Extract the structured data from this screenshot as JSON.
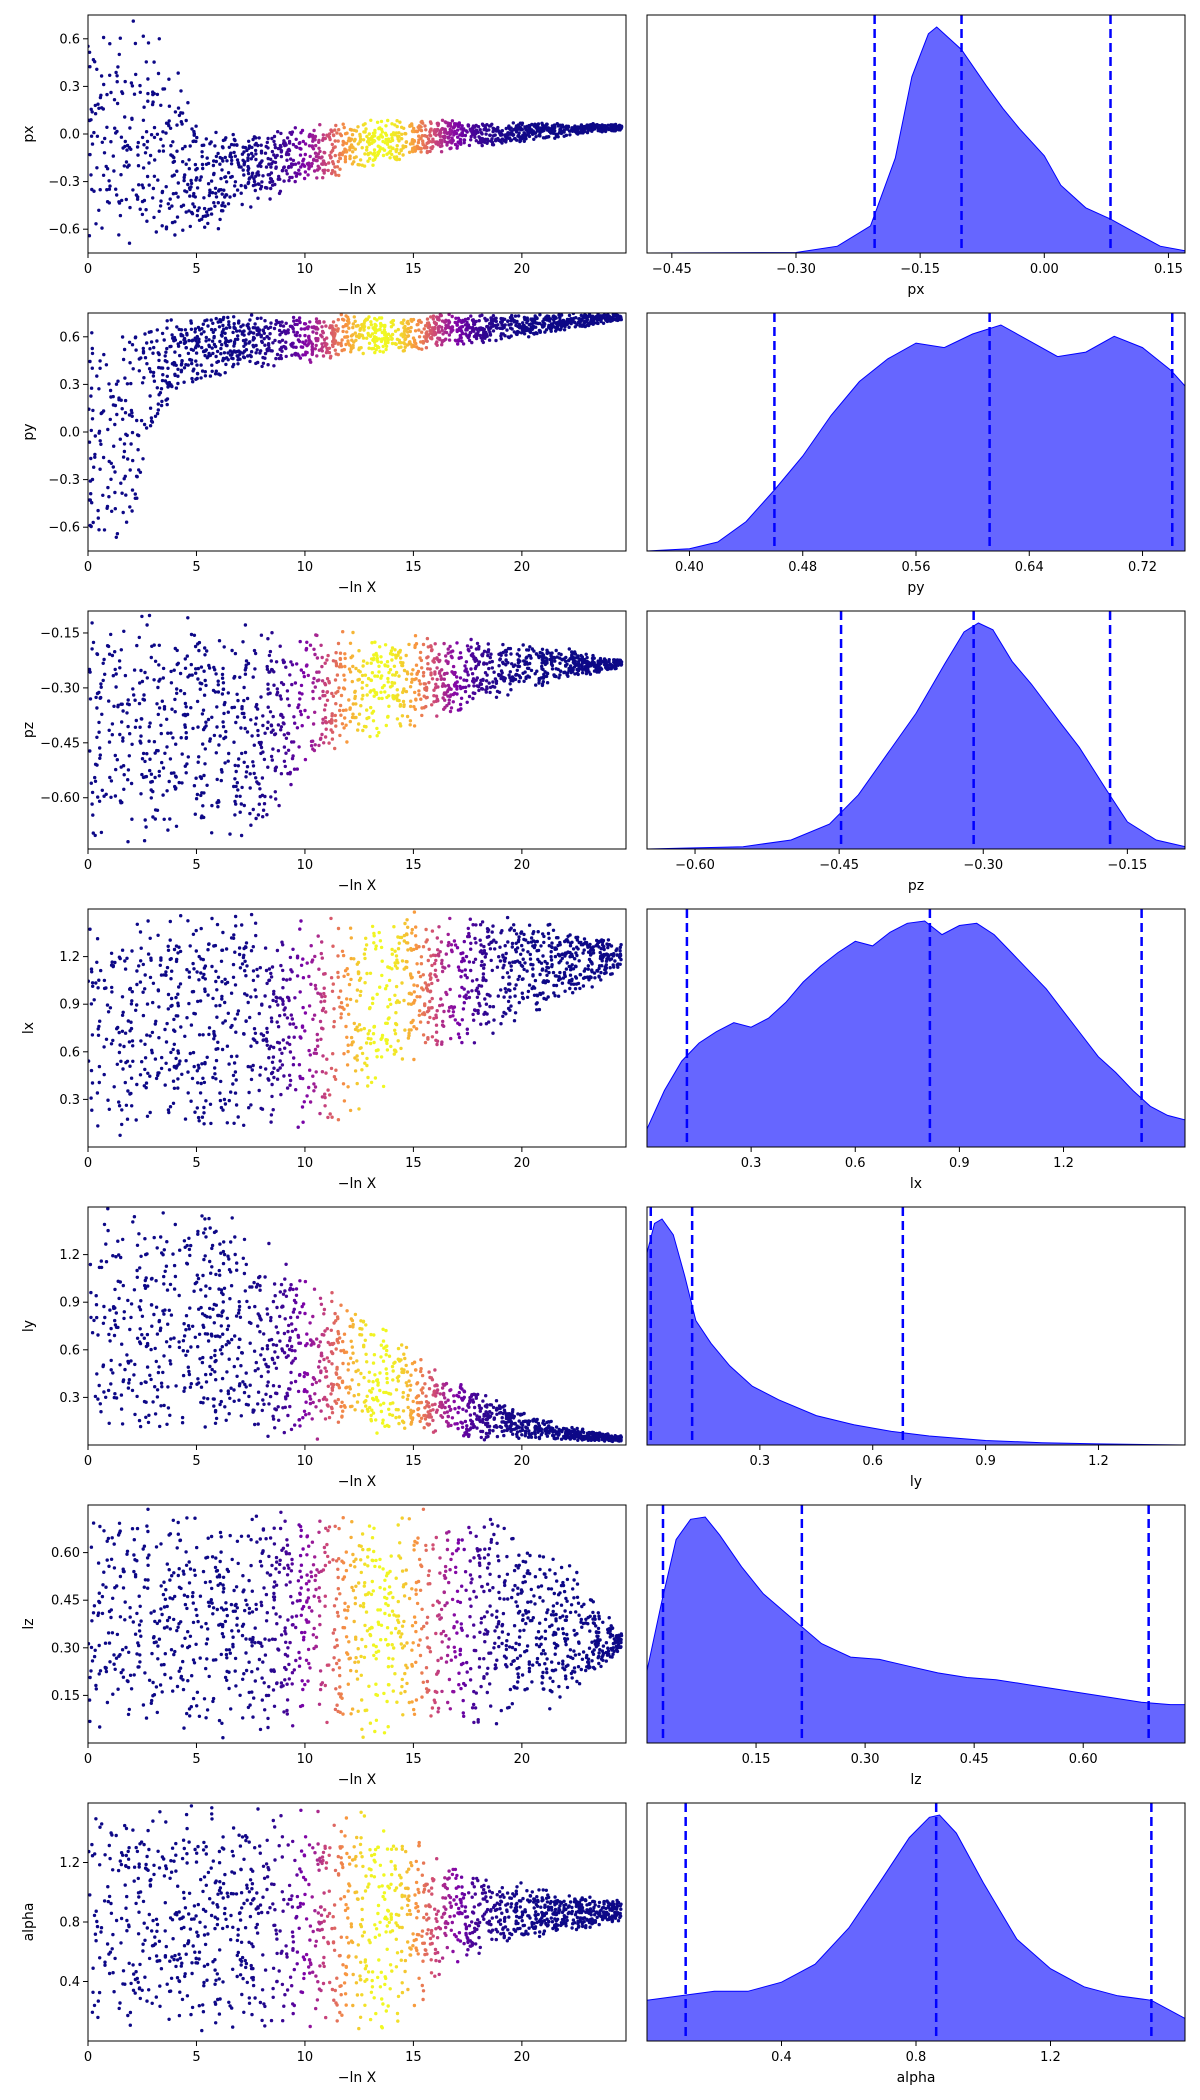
{
  "figure": {
    "rows": 7,
    "cols": 2,
    "kind": "nested-sampling run plot"
  },
  "chart_data": [
    {
      "type": "scatter",
      "param": "px",
      "xlabel": "−ln X",
      "ylabel": "px",
      "xlim": [
        0,
        24.8
      ],
      "ylim": [
        -0.75,
        0.75
      ],
      "xticks": [
        0,
        5,
        10,
        15,
        20
      ],
      "xtick_labels": [
        "0",
        "5",
        "10",
        "15",
        "20"
      ],
      "yticks": [
        -0.6,
        -0.3,
        0.0,
        0.3,
        0.6
      ],
      "ytick_labels": [
        "−0.6",
        "−0.3",
        "0.0",
        "0.3",
        "0.6"
      ],
      "colormap": "plasma",
      "color_encodes": "posterior weight (peak near −ln X ≈ 13.5)",
      "envelope": {
        "neglnx": [
          0,
          2,
          4,
          5,
          7,
          9,
          11,
          13,
          15,
          17,
          19,
          21,
          23,
          24.5
        ],
        "upper": [
          0.75,
          0.75,
          0.6,
          0.1,
          0.05,
          0.05,
          0.07,
          0.1,
          0.1,
          0.1,
          0.08,
          0.08,
          0.07,
          0.06
        ],
        "lower": [
          -0.75,
          -0.75,
          -0.75,
          -0.75,
          -0.5,
          -0.38,
          -0.3,
          -0.22,
          -0.15,
          -0.1,
          -0.07,
          -0.04,
          0.0,
          0.02
        ]
      }
    },
    {
      "type": "area",
      "param": "px",
      "xlabel": "px",
      "xlim": [
        -0.48,
        0.17
      ],
      "xticks": [
        -0.45,
        -0.3,
        -0.15,
        0.0,
        0.15
      ],
      "xtick_labels": [
        "−0.45",
        "−0.30",
        "−0.15",
        "0.00",
        "0.15"
      ],
      "x": [
        -0.48,
        -0.3,
        -0.25,
        -0.21,
        -0.18,
        -0.16,
        -0.14,
        -0.13,
        -0.1,
        -0.07,
        -0.05,
        -0.03,
        0.0,
        0.02,
        0.05,
        0.08,
        0.11,
        0.14,
        0.17
      ],
      "density": [
        0,
        0.002,
        0.03,
        0.12,
        0.42,
        0.78,
        0.97,
        1.0,
        0.9,
        0.74,
        0.64,
        0.55,
        0.43,
        0.3,
        0.2,
        0.15,
        0.09,
        0.03,
        0.01
      ],
      "vlines": [
        -0.205,
        -0.1,
        0.08
      ],
      "fill_color": "#0000ff",
      "fill_opacity": 0.6,
      "line_color": "#0000ff"
    },
    {
      "type": "scatter",
      "param": "py",
      "xlabel": "−ln X",
      "ylabel": "py",
      "xlim": [
        0,
        24.8
      ],
      "ylim": [
        -0.75,
        0.75
      ],
      "xticks": [
        0,
        5,
        10,
        15,
        20
      ],
      "xtick_labels": [
        "0",
        "5",
        "10",
        "15",
        "20"
      ],
      "yticks": [
        -0.6,
        -0.3,
        0.0,
        0.3,
        0.6
      ],
      "ytick_labels": [
        "−0.6",
        "−0.3",
        "0.0",
        "0.3",
        "0.6"
      ],
      "colormap": "plasma",
      "color_encodes": "posterior weight (peak near −ln X ≈ 13.5)",
      "envelope": {
        "neglnx": [
          0,
          1,
          2,
          3,
          4,
          5,
          7,
          10,
          13,
          16,
          19,
          22,
          24.5
        ],
        "upper": [
          0.75,
          0.75,
          0.75,
          0.75,
          0.75,
          0.75,
          0.75,
          0.75,
          0.75,
          0.75,
          0.75,
          0.75,
          0.75
        ],
        "lower": [
          -0.75,
          -0.75,
          -0.75,
          0.0,
          0.2,
          0.3,
          0.37,
          0.42,
          0.47,
          0.52,
          0.57,
          0.63,
          0.7
        ]
      }
    },
    {
      "type": "area",
      "param": "py",
      "xlabel": "py",
      "xlim": [
        0.37,
        0.75
      ],
      "xticks": [
        0.4,
        0.48,
        0.56,
        0.64,
        0.72
      ],
      "xtick_labels": [
        "0.40",
        "0.48",
        "0.56",
        "0.64",
        "0.72"
      ],
      "x": [
        0.37,
        0.4,
        0.42,
        0.44,
        0.46,
        0.48,
        0.5,
        0.52,
        0.54,
        0.56,
        0.58,
        0.6,
        0.62,
        0.64,
        0.66,
        0.68,
        0.7,
        0.72,
        0.74,
        0.75
      ],
      "density": [
        0,
        0.01,
        0.04,
        0.13,
        0.27,
        0.42,
        0.6,
        0.75,
        0.85,
        0.92,
        0.9,
        0.96,
        1.0,
        0.93,
        0.86,
        0.88,
        0.95,
        0.9,
        0.8,
        0.73
      ],
      "vlines": [
        0.46,
        0.612,
        0.741
      ],
      "fill_color": "#0000ff",
      "fill_opacity": 0.6,
      "line_color": "#0000ff"
    },
    {
      "type": "scatter",
      "param": "pz",
      "xlabel": "−ln X",
      "ylabel": "pz",
      "xlim": [
        0,
        24.8
      ],
      "ylim": [
        -0.74,
        -0.09
      ],
      "xticks": [
        0,
        5,
        10,
        15,
        20
      ],
      "xtick_labels": [
        "0",
        "5",
        "10",
        "15",
        "20"
      ],
      "yticks": [
        -0.6,
        -0.45,
        -0.3,
        -0.15
      ],
      "ytick_labels": [
        "−0.60",
        "−0.45",
        "−0.30",
        "−0.15"
      ],
      "colormap": "plasma",
      "color_encodes": "posterior weight (peak near −ln X ≈ 13.5)",
      "envelope": {
        "neglnx": [
          0,
          2,
          4,
          6,
          8,
          10,
          12,
          14,
          16,
          18,
          20,
          22,
          24.5
        ],
        "upper": [
          -0.09,
          -0.09,
          -0.09,
          -0.1,
          -0.11,
          -0.13,
          -0.14,
          -0.14,
          -0.15,
          -0.16,
          -0.18,
          -0.19,
          -0.22
        ],
        "lower": [
          -0.74,
          -0.74,
          -0.74,
          -0.74,
          -0.72,
          -0.55,
          -0.48,
          -0.44,
          -0.4,
          -0.36,
          -0.31,
          -0.28,
          -0.25
        ]
      }
    },
    {
      "type": "area",
      "param": "pz",
      "xlabel": "pz",
      "xlim": [
        -0.65,
        -0.09
      ],
      "xticks": [
        -0.6,
        -0.45,
        -0.3,
        -0.15
      ],
      "xtick_labels": [
        "−0.60",
        "−0.45",
        "−0.30",
        "−0.15"
      ],
      "x": [
        -0.65,
        -0.55,
        -0.5,
        -0.46,
        -0.43,
        -0.4,
        -0.37,
        -0.34,
        -0.32,
        -0.305,
        -0.29,
        -0.27,
        -0.25,
        -0.22,
        -0.2,
        -0.17,
        -0.15,
        -0.12,
        -0.09
      ],
      "density": [
        0,
        0.01,
        0.04,
        0.11,
        0.24,
        0.42,
        0.6,
        0.82,
        0.96,
        1.0,
        0.97,
        0.83,
        0.73,
        0.56,
        0.45,
        0.25,
        0.12,
        0.04,
        0.01
      ],
      "vlines": [
        -0.448,
        -0.31,
        -0.168
      ],
      "fill_color": "#0000ff",
      "fill_opacity": 0.6,
      "line_color": "#0000ff"
    },
    {
      "type": "scatter",
      "param": "lx",
      "xlabel": "−ln X",
      "ylabel": "lx",
      "xlim": [
        0,
        24.8
      ],
      "ylim": [
        0.0,
        1.5
      ],
      "xticks": [
        0,
        5,
        10,
        15,
        20
      ],
      "xtick_labels": [
        "0",
        "5",
        "10",
        "15",
        "20"
      ],
      "yticks": [
        0.3,
        0.6,
        0.9,
        1.2
      ],
      "ytick_labels": [
        "0.3",
        "0.6",
        "0.9",
        "1.2"
      ],
      "colormap": "plasma",
      "color_encodes": "posterior weight (peak near −ln X ≈ 13.5)",
      "envelope": {
        "neglnx": [
          0,
          4,
          8,
          10,
          11,
          12,
          13,
          14,
          16,
          18,
          20,
          22,
          24.5
        ],
        "upper": [
          1.5,
          1.5,
          1.5,
          1.5,
          1.5,
          1.5,
          1.5,
          1.5,
          1.5,
          1.5,
          1.45,
          1.4,
          1.3
        ],
        "lower": [
          0.02,
          0.02,
          0.02,
          0.03,
          0.04,
          0.1,
          0.25,
          0.4,
          0.55,
          0.65,
          0.75,
          0.9,
          1.1
        ]
      }
    },
    {
      "type": "area",
      "param": "lx",
      "xlabel": "lx",
      "xlim": [
        0.0,
        1.55
      ],
      "xticks": [
        0.3,
        0.6,
        0.9,
        1.2
      ],
      "xtick_labels": [
        "0.3",
        "0.6",
        "0.9",
        "1.2"
      ],
      "x": [
        0.0,
        0.05,
        0.1,
        0.15,
        0.2,
        0.25,
        0.3,
        0.35,
        0.4,
        0.45,
        0.5,
        0.55,
        0.6,
        0.65,
        0.7,
        0.75,
        0.8,
        0.85,
        0.9,
        0.95,
        1.0,
        1.05,
        1.1,
        1.15,
        1.2,
        1.25,
        1.3,
        1.35,
        1.4,
        1.45,
        1.5,
        1.55
      ],
      "density": [
        0.08,
        0.25,
        0.38,
        0.46,
        0.51,
        0.55,
        0.53,
        0.57,
        0.64,
        0.73,
        0.8,
        0.86,
        0.91,
        0.89,
        0.95,
        0.99,
        1.0,
        0.94,
        0.98,
        0.99,
        0.94,
        0.86,
        0.78,
        0.7,
        0.6,
        0.5,
        0.4,
        0.33,
        0.25,
        0.18,
        0.14,
        0.12
      ],
      "vlines": [
        0.115,
        0.815,
        1.425
      ],
      "fill_color": "#0000ff",
      "fill_opacity": 0.6,
      "line_color": "#0000ff"
    },
    {
      "type": "scatter",
      "param": "ly",
      "xlabel": "−ln X",
      "ylabel": "ly",
      "xlim": [
        0,
        24.8
      ],
      "ylim": [
        0.0,
        1.5
      ],
      "xticks": [
        0,
        5,
        10,
        15,
        20
      ],
      "xtick_labels": [
        "0",
        "5",
        "10",
        "15",
        "20"
      ],
      "yticks": [
        0.3,
        0.6,
        0.9,
        1.2
      ],
      "ytick_labels": [
        "0.3",
        "0.6",
        "0.9",
        "1.2"
      ],
      "colormap": "plasma",
      "color_encodes": "posterior weight (peak near −ln X ≈ 13.5)",
      "envelope": {
        "neglnx": [
          0,
          3,
          6,
          8,
          10,
          12,
          14,
          16,
          18,
          20,
          22,
          24.5
        ],
        "upper": [
          1.5,
          1.5,
          1.5,
          1.35,
          1.15,
          0.9,
          0.75,
          0.5,
          0.35,
          0.22,
          0.12,
          0.06
        ],
        "lower": [
          0.02,
          0.02,
          0.02,
          0.02,
          0.02,
          0.02,
          0.02,
          0.02,
          0.02,
          0.02,
          0.02,
          0.02
        ]
      }
    },
    {
      "type": "area",
      "param": "ly",
      "xlabel": "ly",
      "xlim": [
        0.0,
        1.43
      ],
      "xticks": [
        0.3,
        0.6,
        0.9,
        1.2
      ],
      "xtick_labels": [
        "0.3",
        "0.6",
        "0.9",
        "1.2"
      ],
      "x": [
        0.0,
        0.02,
        0.04,
        0.07,
        0.1,
        0.13,
        0.17,
        0.22,
        0.28,
        0.35,
        0.45,
        0.55,
        0.65,
        0.75,
        0.9,
        1.05,
        1.2,
        1.43
      ],
      "density": [
        0.85,
        0.98,
        1.0,
        0.93,
        0.75,
        0.55,
        0.45,
        0.35,
        0.26,
        0.2,
        0.13,
        0.09,
        0.06,
        0.04,
        0.02,
        0.01,
        0.005,
        0
      ],
      "vlines": [
        0.01,
        0.12,
        0.68
      ],
      "fill_color": "#0000ff",
      "fill_opacity": 0.6,
      "line_color": "#0000ff"
    },
    {
      "type": "scatter",
      "param": "lz",
      "xlabel": "−ln X",
      "ylabel": "lz",
      "xlim": [
        0,
        24.8
      ],
      "ylim": [
        0.0,
        0.75
      ],
      "xticks": [
        0,
        5,
        10,
        15,
        20
      ],
      "xtick_labels": [
        "0",
        "5",
        "10",
        "15",
        "20"
      ],
      "yticks": [
        0.15,
        0.3,
        0.45,
        0.6
      ],
      "ytick_labels": [
        "0.15",
        "0.30",
        "0.45",
        "0.60"
      ],
      "colormap": "plasma",
      "color_encodes": "posterior weight (peak near −ln X ≈ 13.5)",
      "envelope": {
        "neglnx": [
          0,
          4,
          8,
          12,
          16,
          18,
          19,
          20,
          21,
          22,
          23,
          24.5
        ],
        "upper": [
          0.75,
          0.75,
          0.75,
          0.75,
          0.75,
          0.75,
          0.72,
          0.7,
          0.65,
          0.6,
          0.5,
          0.35
        ],
        "lower": [
          0.01,
          0.01,
          0.01,
          0.01,
          0.01,
          0.02,
          0.03,
          0.05,
          0.08,
          0.12,
          0.18,
          0.28
        ]
      }
    },
    {
      "type": "area",
      "param": "lz",
      "xlabel": "lz",
      "xlim": [
        0.0,
        0.74
      ],
      "xticks": [
        0.15,
        0.3,
        0.45,
        0.6
      ],
      "xtick_labels": [
        "0.15",
        "0.30",
        "0.45",
        "0.60"
      ],
      "x": [
        0.0,
        0.02,
        0.04,
        0.06,
        0.08,
        0.1,
        0.13,
        0.16,
        0.2,
        0.24,
        0.28,
        0.32,
        0.36,
        0.4,
        0.44,
        0.48,
        0.52,
        0.56,
        0.6,
        0.64,
        0.68,
        0.72,
        0.74
      ],
      "density": [
        0.32,
        0.62,
        0.9,
        0.99,
        1.0,
        0.92,
        0.78,
        0.66,
        0.55,
        0.44,
        0.38,
        0.37,
        0.34,
        0.31,
        0.29,
        0.28,
        0.26,
        0.24,
        0.22,
        0.2,
        0.18,
        0.17,
        0.17
      ],
      "vlines": [
        0.022,
        0.213,
        0.69
      ],
      "fill_color": "#0000ff",
      "fill_opacity": 0.6,
      "line_color": "#0000ff"
    },
    {
      "type": "scatter",
      "param": "alpha",
      "xlabel": "−ln X",
      "ylabel": "alpha",
      "xlim": [
        0,
        24.8
      ],
      "ylim": [
        0.0,
        1.6
      ],
      "xticks": [
        0,
        5,
        10,
        15,
        20
      ],
      "xtick_labels": [
        "0",
        "5",
        "10",
        "15",
        "20"
      ],
      "yticks": [
        0.4,
        0.8,
        1.2
      ],
      "ytick_labels": [
        "0.4",
        "0.8",
        "1.2"
      ],
      "colormap": "plasma",
      "color_encodes": "posterior weight (peak near −ln X ≈ 13.5)",
      "envelope": {
        "neglnx": [
          0,
          4,
          8,
          12,
          14,
          16,
          18,
          20,
          22,
          24.5
        ],
        "upper": [
          1.6,
          1.6,
          1.6,
          1.6,
          1.5,
          1.3,
          1.15,
          1.08,
          1.0,
          0.95
        ],
        "lower": [
          0.02,
          0.02,
          0.02,
          0.02,
          0.05,
          0.35,
          0.55,
          0.65,
          0.72,
          0.8
        ]
      }
    },
    {
      "type": "area",
      "param": "alpha",
      "xlabel": "alpha",
      "xlim": [
        0.0,
        1.6
      ],
      "xticks": [
        0.4,
        0.8,
        1.2
      ],
      "xtick_labels": [
        "0.4",
        "0.8",
        "1.2"
      ],
      "x": [
        0.0,
        0.1,
        0.2,
        0.3,
        0.4,
        0.5,
        0.6,
        0.7,
        0.78,
        0.84,
        0.87,
        0.92,
        1.0,
        1.1,
        1.2,
        1.3,
        1.4,
        1.5,
        1.6
      ],
      "density": [
        0.18,
        0.2,
        0.22,
        0.22,
        0.26,
        0.34,
        0.5,
        0.72,
        0.9,
        0.99,
        1.0,
        0.92,
        0.7,
        0.45,
        0.32,
        0.24,
        0.2,
        0.18,
        0.1
      ],
      "vlines": [
        0.115,
        0.86,
        1.5
      ],
      "fill_color": "#0000ff",
      "fill_opacity": 0.6,
      "line_color": "#0000ff"
    }
  ]
}
